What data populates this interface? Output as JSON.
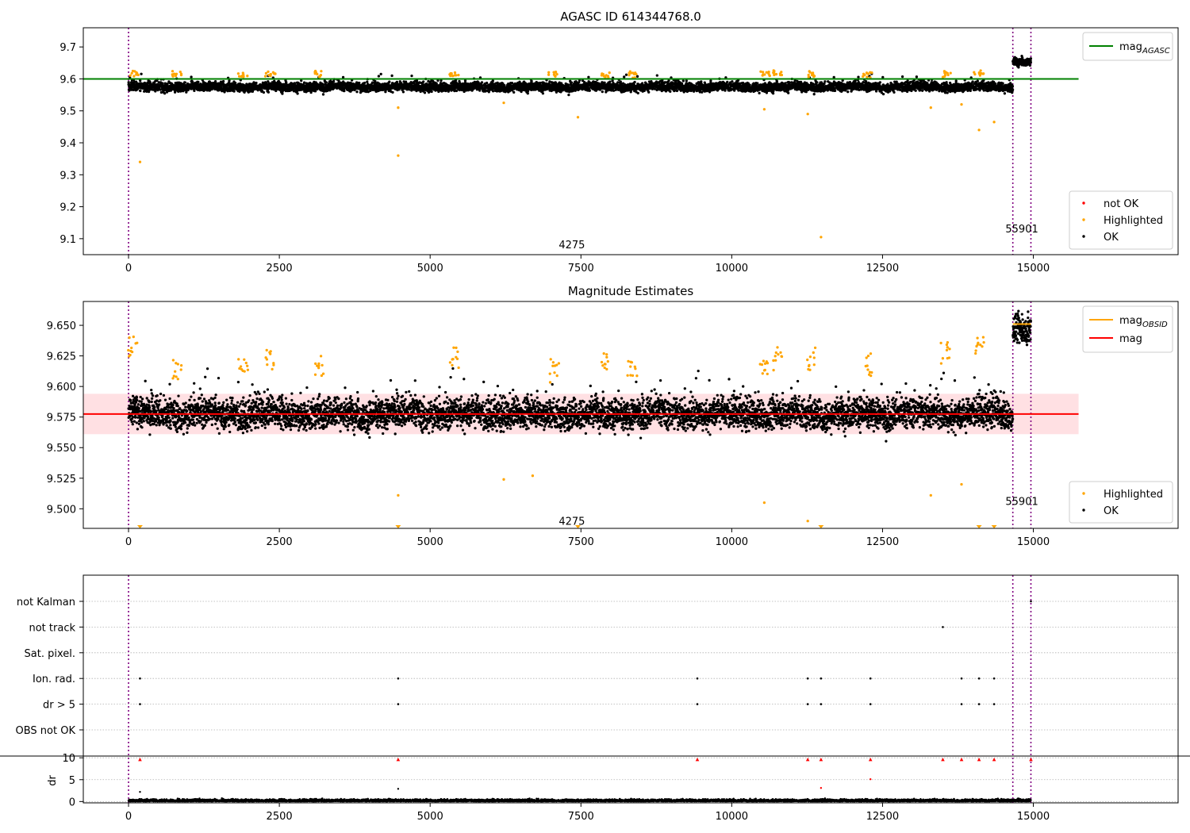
{
  "chart_data": [
    {
      "type": "scatter",
      "title": "AGASC ID 614344768.0",
      "xlim": [
        -750,
        17400
      ],
      "ylim": [
        9.05,
        9.76
      ],
      "xticks": [
        0,
        2500,
        5000,
        7500,
        10000,
        12500,
        15000
      ],
      "yticks": [
        9.1,
        9.2,
        9.3,
        9.4,
        9.5,
        9.6,
        9.7
      ],
      "ytick_decimals": 1,
      "reference_lines": [
        {
          "name": "mag_AGASC",
          "label_main": "mag",
          "label_sub": "AGASC",
          "y": 9.6,
          "x": [
            -750,
            15750
          ],
          "color": "#008000"
        }
      ],
      "vlines": [
        0,
        14660,
        14960
      ],
      "vline_color": "#800080",
      "obsid_labels": [
        {
          "text": "4275",
          "x": 7350,
          "y": 9.07
        },
        {
          "text": "55901",
          "x": 14810,
          "y": 9.12
        }
      ],
      "segments": [
        {
          "x": [
            0,
            14660
          ],
          "center": 9.575,
          "spread": 0.014,
          "color": "#000000"
        },
        {
          "x": [
            14660,
            14960
          ],
          "center": 9.655,
          "spread": 0.012,
          "color": "#000000"
        }
      ],
      "highlight_clusters": [
        [
          80,
          9.615
        ],
        [
          800,
          9.612
        ],
        [
          1900,
          9.61
        ],
        [
          2350,
          9.615
        ],
        [
          3150,
          9.612
        ],
        [
          5400,
          9.615
        ],
        [
          7050,
          9.61
        ],
        [
          7900,
          9.61
        ],
        [
          8350,
          9.61
        ],
        [
          10550,
          9.612
        ],
        [
          10750,
          9.615
        ],
        [
          11300,
          9.612
        ],
        [
          12250,
          9.61
        ],
        [
          13550,
          9.612
        ],
        [
          14100,
          9.615
        ]
      ],
      "highlight_outliers": [
        [
          190,
          9.34
        ],
        [
          4470,
          9.36
        ],
        [
          4470,
          9.51
        ],
        [
          7450,
          9.48
        ],
        [
          11480,
          9.105
        ],
        [
          10540,
          9.505
        ],
        [
          11260,
          9.49
        ],
        [
          13300,
          9.51
        ],
        [
          13810,
          9.52
        ],
        [
          14100,
          9.44
        ],
        [
          14350,
          9.465
        ],
        [
          6220,
          9.525
        ]
      ],
      "legend": {
        "position": "lower right",
        "entries": [
          {
            "label": "not OK",
            "color": "#ff0000"
          },
          {
            "label": "Highlighted",
            "color": "#ffa500"
          },
          {
            "label": "OK",
            "color": "#000000"
          }
        ]
      },
      "line_legend": {
        "position": "upper right"
      }
    },
    {
      "type": "scatter",
      "title": "Magnitude Estimates",
      "xlim": [
        -750,
        17400
      ],
      "ylim": [
        9.484,
        9.6695
      ],
      "xticks": [
        0,
        2500,
        5000,
        7500,
        10000,
        12500,
        15000
      ],
      "yticks": [
        9.5,
        9.525,
        9.55,
        9.575,
        9.6,
        9.625,
        9.65
      ],
      "ytick_decimals": 3,
      "band": {
        "y": [
          9.561,
          9.594
        ],
        "x": [
          -750,
          15750
        ],
        "color": "#ffd6d9"
      },
      "reference_lines": [
        {
          "name": "mag_OBSID",
          "label_main": "mag",
          "label_sub": "OBSID",
          "y": 9.651,
          "x": [
            14660,
            14960
          ],
          "color": "#ffa500"
        },
        {
          "name": "mag",
          "label_main": "mag",
          "label_sub": "",
          "y": 9.5775,
          "x": [
            -750,
            15750
          ],
          "color": "#ff0000"
        }
      ],
      "vlines": [
        0,
        14660,
        14960
      ],
      "vline_color": "#800080",
      "obsid_labels": [
        {
          "text": "4275",
          "x": 7350,
          "y": 9.487
        },
        {
          "text": "55901",
          "x": 14810,
          "y": 9.503
        }
      ],
      "segments": [
        {
          "x": [
            0,
            14660
          ],
          "center": 9.5775,
          "spread": 0.012,
          "color": "#000000"
        },
        {
          "x": [
            14660,
            14960
          ],
          "center": 9.648,
          "spread": 0.011,
          "color": "#000000"
        }
      ],
      "highlight_clusters": [
        [
          60,
          9.63
        ],
        [
          800,
          9.612
        ],
        [
          1900,
          9.615
        ],
        [
          2350,
          9.62
        ],
        [
          3150,
          9.615
        ],
        [
          5400,
          9.62
        ],
        [
          7050,
          9.61
        ],
        [
          7900,
          9.62
        ],
        [
          8350,
          9.615
        ],
        [
          10550,
          9.615
        ],
        [
          10750,
          9.62
        ],
        [
          11300,
          9.62
        ],
        [
          12250,
          9.615
        ],
        [
          13550,
          9.625
        ],
        [
          14100,
          9.628
        ]
      ],
      "highlight_outliers": [
        [
          4470,
          9.511
        ],
        [
          6220,
          9.524
        ],
        [
          6700,
          9.527
        ],
        [
          10540,
          9.505
        ],
        [
          11260,
          9.49
        ],
        [
          13300,
          9.511
        ],
        [
          13810,
          9.52
        ]
      ],
      "clipped_markers": [
        190,
        4470,
        7450,
        11480,
        14100,
        14350
      ],
      "legend": {
        "position": "lower right",
        "entries": [
          {
            "label": "Highlighted",
            "color": "#ffa500"
          },
          {
            "label": "OK",
            "color": "#000000"
          }
        ]
      },
      "line_legend": {
        "position": "upper right"
      }
    },
    {
      "type": "scatter",
      "xlim": [
        -750,
        17400
      ],
      "xticks": [
        0,
        2500,
        5000,
        7500,
        10000,
        12500,
        15000
      ],
      "flag_rows": [
        "not Kalman",
        "not track",
        "Sat. pixel.",
        "Ion. rad.",
        "dr > 5",
        "OBS not OK"
      ],
      "flag_points": {
        "not Kalman": [
          14960
        ],
        "not track": [
          13500
        ],
        "Sat. pixel.": [],
        "Ion. rad.": [
          190,
          4470,
          9430,
          11260,
          11480,
          12300,
          13810,
          14100,
          14350
        ],
        "dr > 5": [
          190,
          4470,
          9430,
          11260,
          11480,
          12300,
          13810,
          14100,
          14350
        ],
        "OBS not OK": []
      },
      "dr": {
        "ylabel": "dr",
        "ylim": [
          -0.3,
          10.4
        ],
        "yticks": [
          0,
          5,
          10
        ],
        "clip_value": 10,
        "clipped_x": [
          190,
          4470,
          9430,
          11260,
          11480,
          12300,
          13500,
          13810,
          14100,
          14350,
          14960
        ],
        "other_points": [
          [
            190,
            2.2,
            "#000000"
          ],
          [
            4470,
            2.9,
            "#000000"
          ],
          [
            11480,
            3.1,
            "#ff0000"
          ],
          [
            12300,
            5.1,
            "#ff0000"
          ]
        ]
      },
      "vlines": [
        0,
        14660,
        14960
      ],
      "vline_color": "#800080"
    }
  ]
}
